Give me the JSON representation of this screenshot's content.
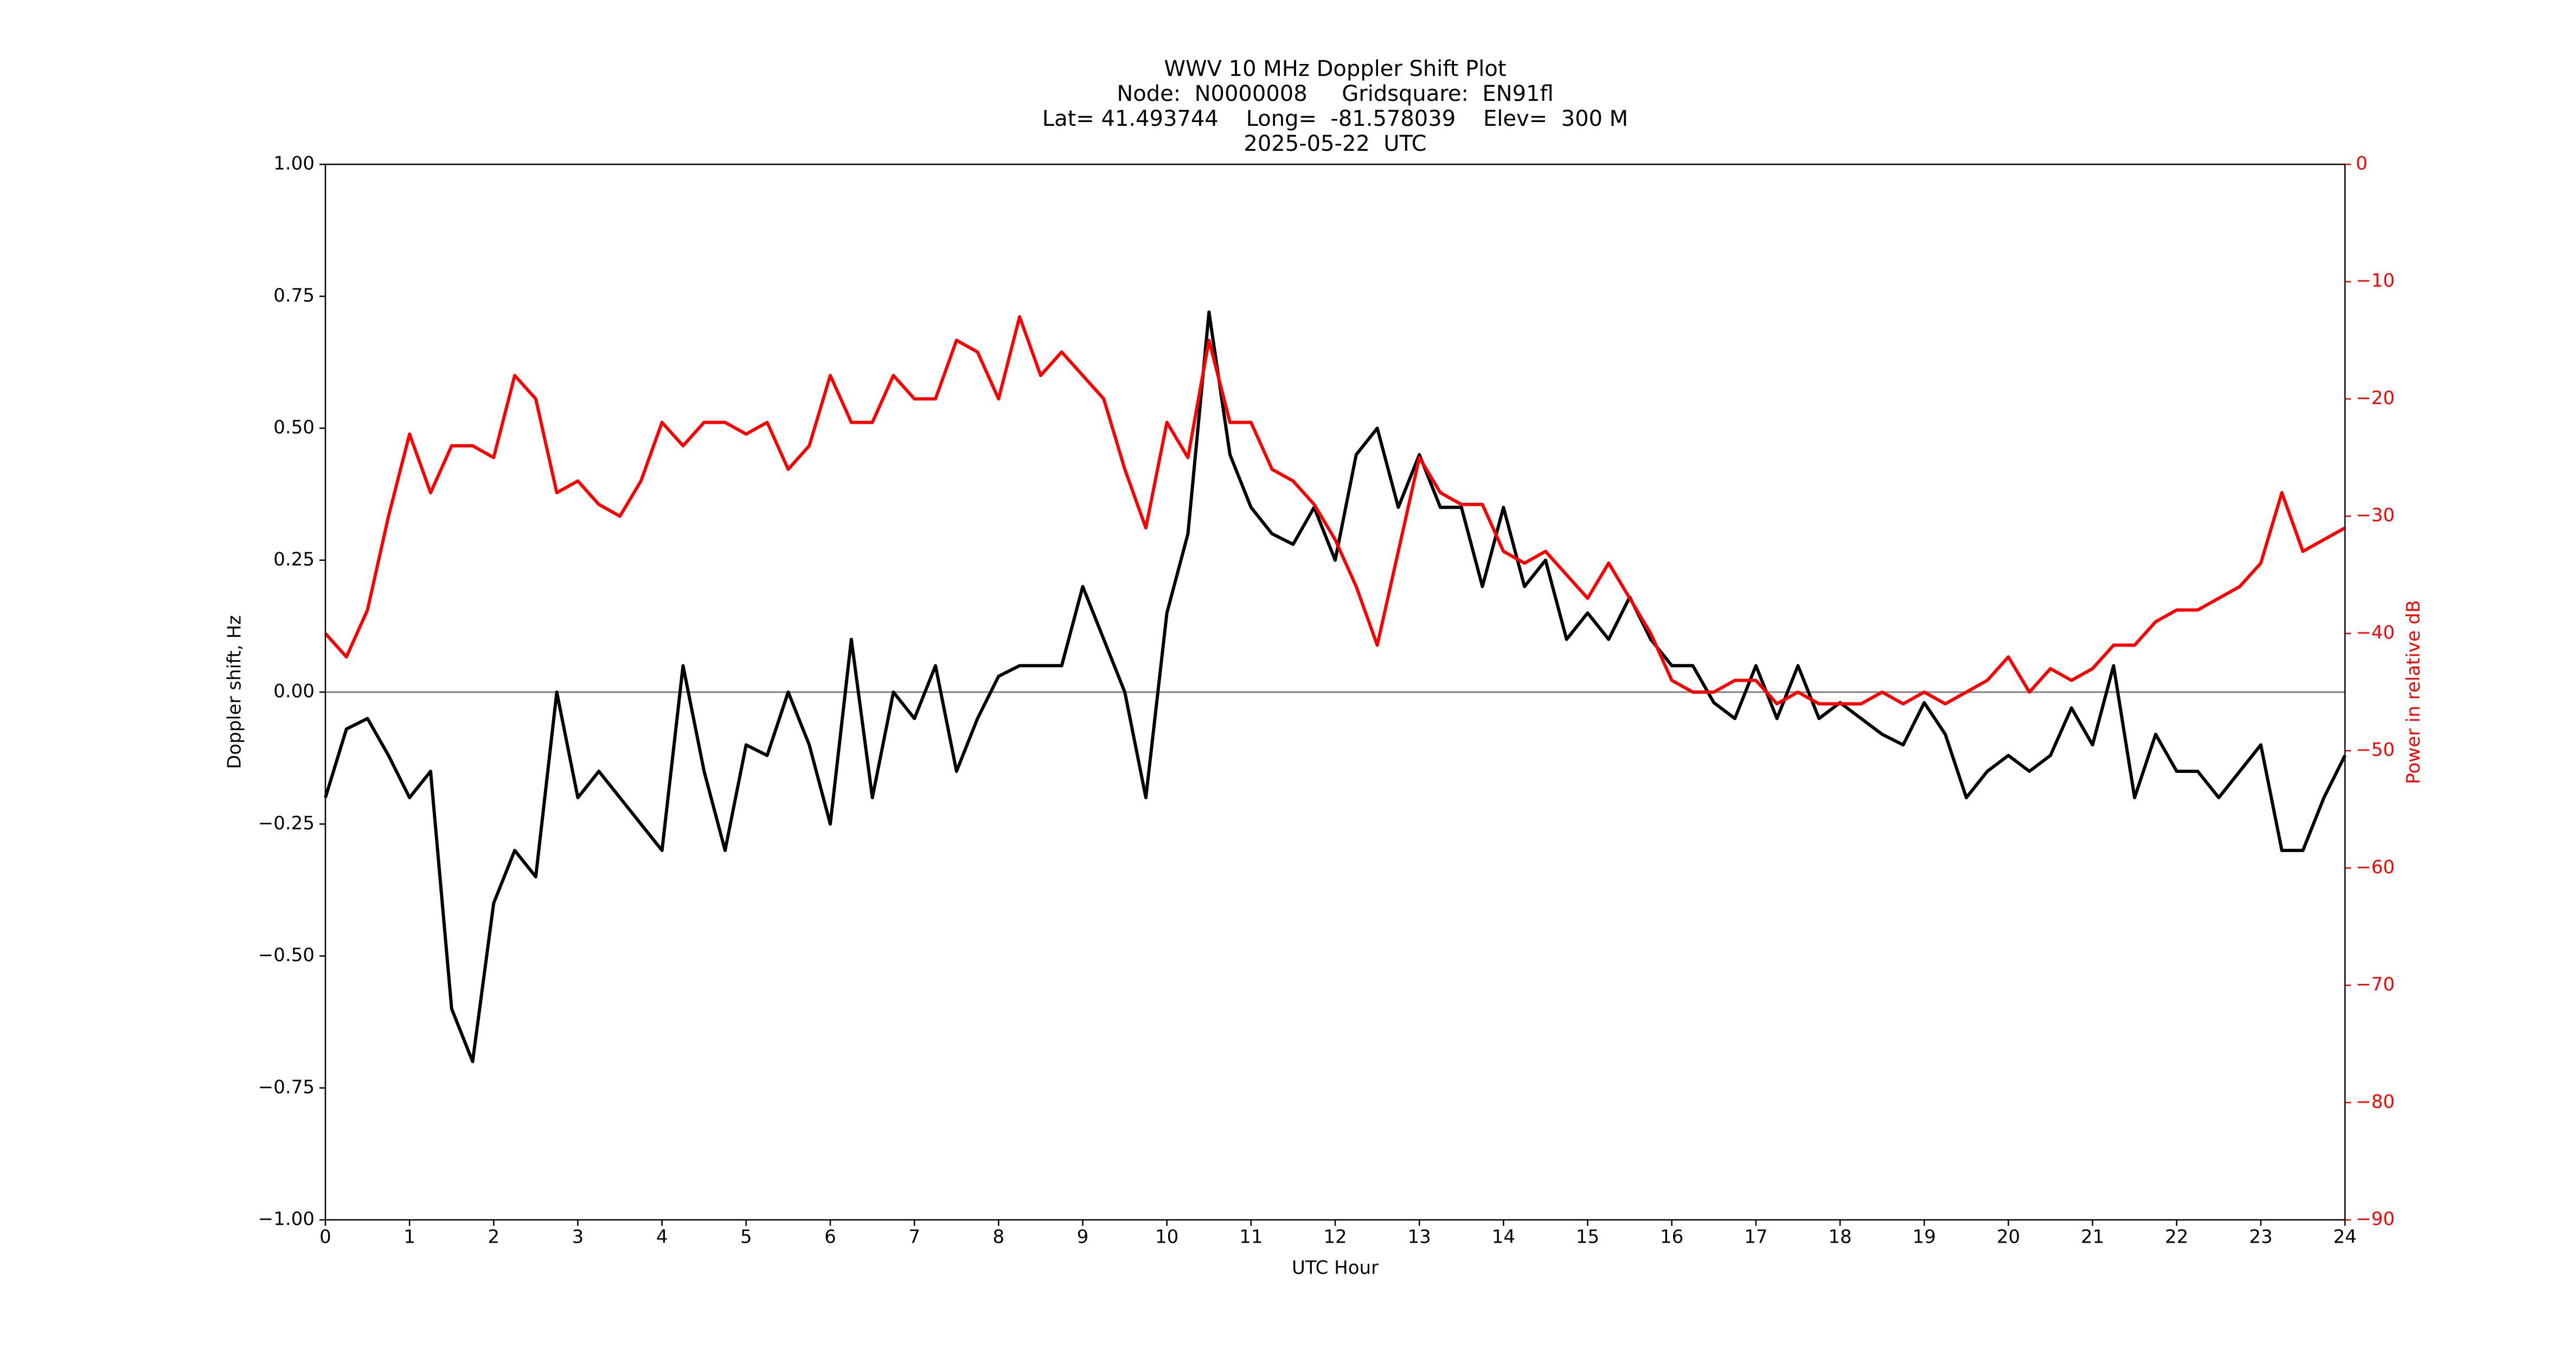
{
  "chart_data": {
    "type": "line",
    "title": [
      "WWV 10 MHz Doppler Shift Plot",
      "Node:  N0000008     Gridsquare:  EN91fl",
      "Lat= 41.493744    Long=  -81.578039    Elev=  300 M",
      "2025-05-22  UTC"
    ],
    "xlabel": "UTC Hour",
    "ylabel": "Doppler shift, Hz",
    "y2label": "Power in relative dB",
    "x": [
      0,
      0.25,
      0.5,
      0.75,
      1,
      1.25,
      1.5,
      1.75,
      2,
      2.25,
      2.5,
      2.75,
      3,
      3.25,
      3.5,
      3.75,
      4,
      4.25,
      4.5,
      4.75,
      5,
      5.25,
      5.5,
      5.75,
      6,
      6.25,
      6.5,
      6.75,
      7,
      7.25,
      7.5,
      7.75,
      8,
      8.25,
      8.5,
      8.75,
      9,
      9.25,
      9.5,
      9.75,
      10,
      10.25,
      10.5,
      10.75,
      11,
      11.25,
      11.5,
      11.75,
      12,
      12.25,
      12.5,
      12.75,
      13,
      13.25,
      13.5,
      13.75,
      14,
      14.25,
      14.5,
      14.75,
      15,
      15.25,
      15.5,
      15.75,
      16,
      16.25,
      16.5,
      16.75,
      17,
      17.25,
      17.5,
      17.75,
      18,
      18.25,
      18.5,
      18.75,
      19,
      19.25,
      19.5,
      19.75,
      20,
      20.25,
      20.5,
      20.75,
      21,
      21.25,
      21.5,
      21.75,
      22,
      22.25,
      22.5,
      22.75,
      23,
      23.25,
      23.5,
      23.75,
      24
    ],
    "series": [
      {
        "name": "Doppler shift",
        "color": "#000000",
        "values": [
          -0.2,
          -0.07,
          -0.05,
          -0.12,
          -0.2,
          -0.15,
          -0.6,
          -0.7,
          -0.4,
          -0.3,
          -0.35,
          0.0,
          -0.2,
          -0.15,
          -0.2,
          -0.25,
          -0.3,
          0.05,
          -0.15,
          -0.3,
          -0.1,
          -0.12,
          0.0,
          -0.1,
          -0.25,
          0.1,
          -0.2,
          0.0,
          -0.05,
          0.05,
          -0.15,
          -0.05,
          0.03,
          0.05,
          0.05,
          0.05,
          0.2,
          0.1,
          0.0,
          -0.2,
          0.15,
          0.3,
          0.72,
          0.45,
          0.35,
          0.3,
          0.28,
          0.35,
          0.25,
          0.45,
          0.5,
          0.35,
          0.45,
          0.35,
          0.35,
          0.2,
          0.35,
          0.2,
          0.25,
          0.1,
          0.15,
          0.1,
          0.18,
          0.1,
          0.05,
          0.05,
          -0.02,
          -0.05,
          0.05,
          -0.05,
          0.05,
          -0.05,
          -0.02,
          -0.05,
          -0.08,
          -0.1,
          -0.02,
          -0.08,
          -0.2,
          -0.15,
          -0.12,
          -0.15,
          -0.12,
          -0.03,
          -0.1,
          0.05,
          -0.2,
          -0.08,
          -0.15,
          -0.15,
          -0.2,
          -0.15,
          -0.1,
          -0.3,
          -0.3,
          -0.2,
          -0.12
        ]
      },
      {
        "name": "Power",
        "color": "#ff0000",
        "axis": "y2",
        "values": [
          -40,
          -42,
          -38,
          -30,
          -23,
          -28,
          -24,
          -24,
          -25,
          -18,
          -20,
          -28,
          -27,
          -29,
          -30,
          -27,
          -22,
          -24,
          -22,
          -22,
          -23,
          -22,
          -26,
          -24,
          -18,
          -22,
          -22,
          -18,
          -20,
          -20,
          -15,
          -16,
          -20,
          -13,
          -18,
          -16,
          -18,
          -20,
          -26,
          -31,
          -22,
          -25,
          -15,
          -22,
          -22,
          -26,
          -27,
          -29,
          -32,
          -36,
          -41,
          -33,
          -25,
          -28,
          -29,
          -29,
          -33,
          -34,
          -33,
          -35,
          -37,
          -34,
          -37,
          -40,
          -44,
          -45,
          -45,
          -44,
          -44,
          -46,
          -45,
          -46,
          -46,
          -46,
          -45,
          -46,
          -45,
          -46,
          -45,
          -44,
          -42,
          -45,
          -43,
          -44,
          -43,
          -41,
          -41,
          -39,
          -38,
          -38,
          -37,
          -36,
          -34,
          -28,
          -33,
          -32,
          -31
        ]
      }
    ],
    "hline": 0,
    "xlim": [
      0,
      24
    ],
    "xticks": [
      0,
      1,
      2,
      3,
      4,
      5,
      6,
      7,
      8,
      9,
      10,
      11,
      12,
      13,
      14,
      15,
      16,
      17,
      18,
      19,
      20,
      21,
      22,
      23,
      24
    ],
    "ylim": [
      -1,
      1
    ],
    "yticks": [
      {
        "value": -1,
        "label": "−1.00"
      },
      {
        "value": -0.75,
        "label": "−0.75"
      },
      {
        "value": -0.5,
        "label": "−0.50"
      },
      {
        "value": -0.25,
        "label": "−0.25"
      },
      {
        "value": 0,
        "label": "0.00"
      },
      {
        "value": 0.25,
        "label": "0.25"
      },
      {
        "value": 0.5,
        "label": "0.50"
      },
      {
        "value": 0.75,
        "label": "0.75"
      },
      {
        "value": 1,
        "label": "1.00"
      }
    ],
    "y2lim": [
      -90,
      0
    ],
    "y2ticks": [
      {
        "value": -90,
        "label": "−90"
      },
      {
        "value": -80,
        "label": "−80"
      },
      {
        "value": -70,
        "label": "−70"
      },
      {
        "value": -60,
        "label": "−60"
      },
      {
        "value": -50,
        "label": "−50"
      },
      {
        "value": -40,
        "label": "−40"
      },
      {
        "value": -30,
        "label": "−30"
      },
      {
        "value": -20,
        "label": "−20"
      },
      {
        "value": -10,
        "label": "−10"
      },
      0
    ],
    "y2color": "#ff0000"
  }
}
